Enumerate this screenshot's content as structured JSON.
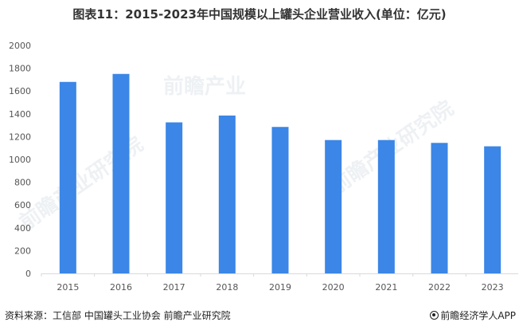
{
  "chart_data": {
    "type": "bar",
    "title": "图表11：2015-2023年中国规模以上罐头企业营业收入(单位：亿元)",
    "categories": [
      "2015",
      "2016",
      "2017",
      "2018",
      "2019",
      "2020",
      "2021",
      "2022",
      "2023"
    ],
    "values": [
      1680,
      1750,
      1325,
      1385,
      1285,
      1170,
      1170,
      1145,
      1115
    ],
    "yticks": [
      0,
      200,
      400,
      600,
      800,
      1000,
      1200,
      1400,
      1600,
      1800,
      2000
    ],
    "ylim": [
      0,
      2000
    ],
    "bar_color": "#3b86e6",
    "axis_color": "#d9d9d9",
    "grid": false,
    "legend": false
  },
  "footer": {
    "source": "资料来源：工信部 中国罐头工业协会 前瞻产业研究院",
    "brand": "前瞻经济学人APP"
  },
  "watermarks": {
    "primary": "前瞻产业",
    "secondary": "前瞻产业研究院"
  }
}
